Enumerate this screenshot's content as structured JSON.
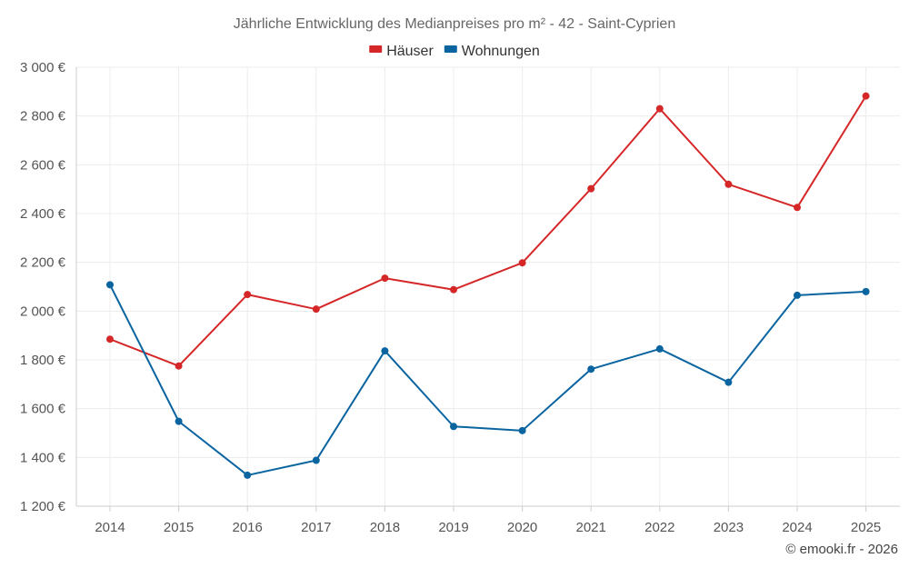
{
  "chart_data": {
    "type": "line",
    "title": "Jährliche Entwicklung des Medianpreises pro m² - 42 - Saint-Cyprien",
    "categories": [
      "2014",
      "2015",
      "2016",
      "2017",
      "2018",
      "2019",
      "2020",
      "2021",
      "2022",
      "2023",
      "2024",
      "2025"
    ],
    "series": [
      {
        "name": "Häuser",
        "color": "#d62728",
        "values": [
          1885,
          1775,
          2068,
          2008,
          2135,
          2088,
          2198,
          2502,
          2830,
          2520,
          2425,
          2882
        ]
      },
      {
        "name": "Wohnungen",
        "color": "#0a64a0",
        "values": [
          2108,
          1548,
          1327,
          1388,
          1837,
          1527,
          1510,
          1762,
          1845,
          1708,
          2065,
          2080
        ]
      }
    ],
    "ylim": [
      1200,
      3000
    ],
    "yticks": [
      1200,
      1400,
      1600,
      1800,
      2000,
      2200,
      2400,
      2600,
      2800,
      3000
    ],
    "ytick_labels": [
      "1 200 €",
      "1 400 €",
      "1 600 €",
      "1 800 €",
      "2 000 €",
      "2 200 €",
      "2 400 €",
      "2 600 €",
      "2 800 €",
      "3 000 €"
    ],
    "legend_position": "top-center",
    "grid": true
  },
  "credit": "© emooki.fr - 2026"
}
